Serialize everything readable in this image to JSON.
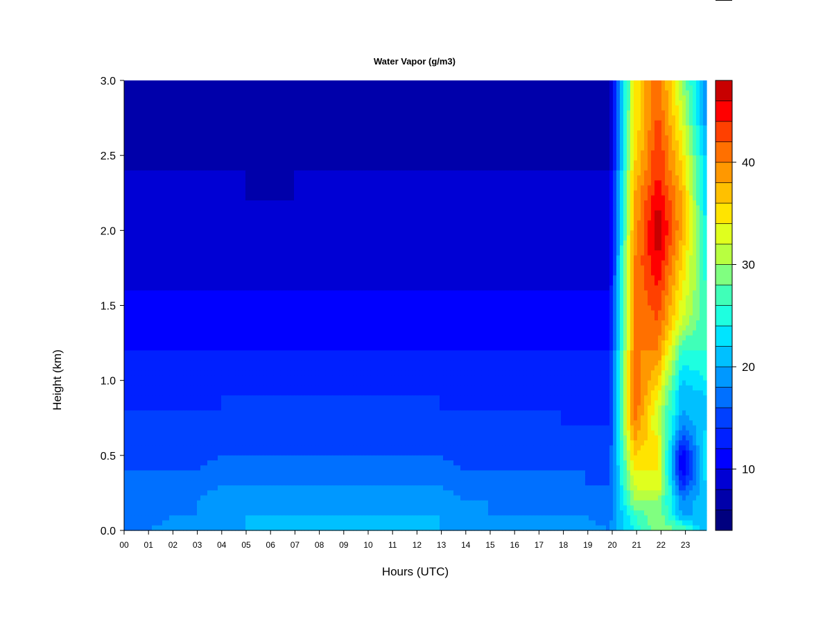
{
  "chart_data": {
    "type": "heatmap",
    "title": "Water Vapor (g/m3)",
    "xlabel": "Hours (UTC)",
    "ylabel": "Height (km)",
    "xlim": [
      0,
      24
    ],
    "ylim": [
      0.0,
      3.0
    ],
    "x_ticks": [
      "00",
      "01",
      "02",
      "03",
      "04",
      "05",
      "06",
      "07",
      "08",
      "09",
      "10",
      "11",
      "12",
      "13",
      "14",
      "15",
      "16",
      "17",
      "18",
      "19",
      "20",
      "21",
      "22",
      "23"
    ],
    "y_ticks": [
      "0.0",
      "0.5",
      "1.0",
      "1.5",
      "2.0",
      "2.5",
      "3.0"
    ],
    "colorbar": {
      "range": [
        4,
        48
      ],
      "ticks": [
        "10",
        "20",
        "30",
        "40"
      ],
      "levels": [
        4,
        6,
        8,
        10,
        12,
        14,
        16,
        18,
        20,
        22,
        24,
        26,
        28,
        30,
        32,
        34,
        36,
        38,
        40,
        42,
        44,
        46,
        48
      ],
      "colors": [
        "#00007f",
        "#0000aa",
        "#0000d4",
        "#0000ff",
        "#0020ff",
        "#0040ff",
        "#0070ff",
        "#0098ff",
        "#00c0ff",
        "#00e4ff",
        "#1effe0",
        "#40ffb8",
        "#80ff80",
        "#b8ff40",
        "#e0ff1e",
        "#ffe400",
        "#ffc000",
        "#ff9800",
        "#ff7000",
        "#ff4000",
        "#ff0000",
        "#c80000",
        "#7f0000"
      ]
    },
    "time_hours": [
      0,
      1,
      2,
      3,
      4,
      5,
      6,
      7,
      8,
      9,
      10,
      11,
      12,
      13,
      14,
      15,
      16,
      17,
      18,
      19,
      20,
      21,
      22,
      23,
      24
    ],
    "height_km": [
      0.0,
      0.1,
      0.2,
      0.3,
      0.4,
      0.5,
      0.6,
      0.7,
      0.8,
      0.9,
      1.0,
      1.2,
      1.4,
      1.6,
      1.8,
      2.0,
      2.2,
      2.4,
      2.6,
      2.8,
      3.0
    ],
    "z_g_per_m3": [
      [
        18,
        18,
        19,
        19,
        20,
        20,
        20,
        20,
        20,
        20,
        20,
        20,
        20,
        20,
        19,
        19,
        19,
        19,
        19,
        19,
        18,
        24,
        30,
        28,
        20
      ],
      [
        17,
        17,
        18,
        18,
        19,
        20,
        20,
        20,
        20,
        20,
        20,
        20,
        20,
        20,
        19,
        18,
        18,
        18,
        18,
        18,
        17,
        26,
        30,
        20,
        20
      ],
      [
        17,
        17,
        17,
        18,
        19,
        19,
        19,
        19,
        19,
        19,
        19,
        19,
        19,
        19,
        18,
        18,
        17,
        17,
        17,
        17,
        16,
        30,
        30,
        18,
        22
      ],
      [
        16,
        16,
        17,
        17,
        18,
        18,
        18,
        18,
        18,
        18,
        18,
        18,
        18,
        18,
        17,
        17,
        17,
        16,
        16,
        16,
        16,
        32,
        34,
        14,
        22
      ],
      [
        16,
        16,
        16,
        16,
        17,
        17,
        17,
        17,
        17,
        17,
        17,
        17,
        17,
        17,
        16,
        16,
        16,
        16,
        16,
        16,
        15,
        34,
        34,
        10,
        24
      ],
      [
        15,
        15,
        15,
        15,
        16,
        16,
        16,
        16,
        16,
        16,
        16,
        16,
        16,
        16,
        15,
        15,
        15,
        15,
        15,
        15,
        15,
        36,
        34,
        10,
        24
      ],
      [
        15,
        15,
        15,
        15,
        15,
        15,
        15,
        15,
        15,
        15,
        15,
        15,
        15,
        15,
        15,
        15,
        15,
        15,
        15,
        14,
        14,
        38,
        34,
        14,
        24
      ],
      [
        14,
        14,
        14,
        14,
        15,
        15,
        15,
        15,
        15,
        15,
        15,
        15,
        15,
        15,
        14,
        14,
        14,
        14,
        14,
        14,
        14,
        40,
        32,
        18,
        22
      ],
      [
        14,
        14,
        14,
        14,
        14,
        14,
        14,
        14,
        14,
        14,
        14,
        14,
        14,
        14,
        14,
        14,
        14,
        14,
        14,
        13,
        13,
        42,
        32,
        20,
        22
      ],
      [
        13,
        13,
        13,
        13,
        14,
        14,
        14,
        14,
        14,
        14,
        14,
        14,
        14,
        14,
        13,
        13,
        13,
        13,
        13,
        13,
        13,
        42,
        34,
        20,
        22
      ],
      [
        13,
        13,
        13,
        13,
        13,
        13,
        13,
        13,
        13,
        13,
        13,
        13,
        13,
        13,
        13,
        13,
        13,
        13,
        13,
        12,
        12,
        42,
        36,
        22,
        24
      ],
      [
        12,
        12,
        12,
        12,
        12,
        12,
        12,
        12,
        12,
        12,
        12,
        12,
        12,
        12,
        12,
        12,
        12,
        12,
        12,
        12,
        12,
        40,
        40,
        26,
        26
      ],
      [
        11,
        11,
        11,
        11,
        11,
        11,
        11,
        11,
        11,
        11,
        11,
        11,
        11,
        11,
        11,
        11,
        11,
        11,
        11,
        11,
        11,
        40,
        42,
        32,
        26
      ],
      [
        10,
        10,
        10,
        10,
        10,
        10,
        10,
        10,
        10,
        10,
        10,
        10,
        10,
        10,
        10,
        10,
        10,
        10,
        10,
        10,
        10,
        40,
        44,
        34,
        26
      ],
      [
        9,
        9,
        9,
        9,
        9,
        9,
        9,
        9,
        9,
        9,
        9,
        9,
        9,
        9,
        9,
        9,
        9,
        9,
        9,
        9,
        9,
        40,
        46,
        36,
        24
      ],
      [
        9,
        9,
        9,
        9,
        9,
        9,
        8,
        9,
        9,
        9,
        9,
        9,
        9,
        9,
        9,
        9,
        9,
        9,
        8,
        9,
        9,
        38,
        48,
        38,
        24
      ],
      [
        8,
        8,
        8,
        8,
        8,
        8,
        8,
        8,
        8,
        8,
        8,
        8,
        8,
        8,
        8,
        8,
        8,
        8,
        8,
        8,
        8,
        38,
        46,
        38,
        22
      ],
      [
        8,
        8,
        8,
        8,
        8,
        8,
        7,
        8,
        8,
        8,
        8,
        8,
        8,
        8,
        8,
        8,
        8,
        8,
        8,
        8,
        8,
        36,
        44,
        36,
        22
      ],
      [
        7,
        7,
        7,
        7,
        7,
        7,
        6,
        7,
        7,
        7,
        7,
        7,
        7,
        7,
        7,
        7,
        7,
        7,
        7,
        7,
        7,
        34,
        44,
        34,
        20
      ],
      [
        6,
        6,
        6,
        6,
        6,
        6,
        6,
        6,
        6,
        6,
        6,
        6,
        6,
        6,
        6,
        6,
        6,
        6,
        6,
        6,
        6,
        34,
        42,
        32,
        18
      ],
      [
        6,
        6,
        6,
        6,
        6,
        6,
        6,
        6,
        6,
        6,
        6,
        6,
        6,
        6,
        6,
        6,
        6,
        6,
        6,
        6,
        6,
        34,
        42,
        30,
        18
      ]
    ]
  }
}
